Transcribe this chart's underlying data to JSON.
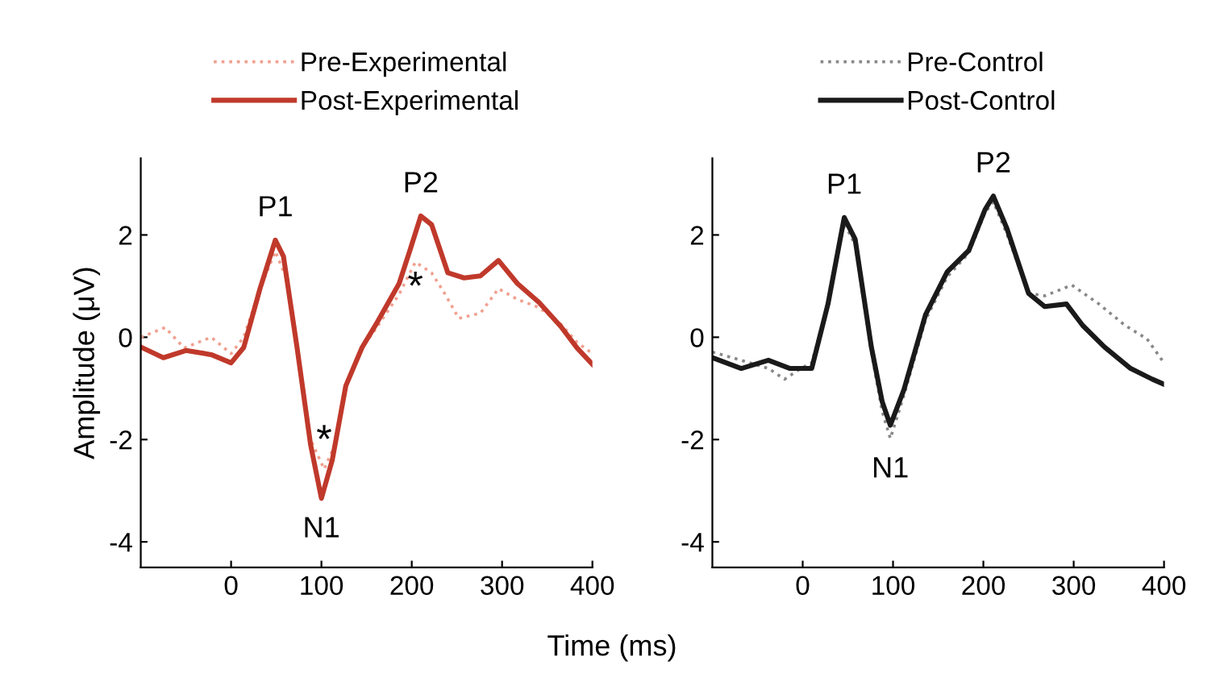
{
  "chart_data": [
    {
      "type": "line",
      "ylabel": "Amplitude (μV)",
      "xlabel": "Time (ms)",
      "xlim": [
        -100,
        400
      ],
      "ylim": [
        -4.5,
        3.5
      ],
      "xticks": [
        0,
        100,
        200,
        300,
        400
      ],
      "yticks": [
        -4,
        -2,
        0,
        2
      ],
      "grid": false,
      "legend": "top",
      "marker": "none",
      "series": [
        {
          "name": "Pre-Experimental",
          "color": "#f0a090",
          "line_style": "dotted",
          "x": [
            -100,
            -73,
            -52,
            -22,
            0,
            14,
            32,
            49,
            61,
            76,
            88,
            103,
            115,
            127,
            145,
            162,
            186,
            204,
            222,
            237,
            252,
            276,
            296,
            317,
            341,
            365,
            383,
            400
          ],
          "values": [
            0,
            0.19,
            -0.21,
            0,
            -0.32,
            0,
            0.95,
            1.68,
            1.16,
            -0.53,
            -2.0,
            -2.58,
            -2.1,
            -0.95,
            -0.21,
            0.21,
            0.84,
            1.47,
            1.26,
            0.84,
            0.37,
            0.47,
            0.95,
            0.74,
            0.58,
            0.26,
            -0.1,
            -0.32
          ]
        },
        {
          "name": "Post-Experimental",
          "color": "#c0392b",
          "line_style": "solid",
          "x": [
            -100,
            -75,
            -50,
            -22,
            0,
            14,
            32,
            49,
            58,
            73,
            88,
            100,
            112,
            127,
            145,
            162,
            186,
            198,
            210,
            222,
            240,
            258,
            276,
            296,
            317,
            341,
            365,
            383,
            400
          ],
          "values": [
            -0.19,
            -0.4,
            -0.26,
            -0.34,
            -0.5,
            -0.2,
            0.95,
            1.9,
            1.58,
            -0.2,
            -2.1,
            -3.15,
            -2.4,
            -0.95,
            -0.2,
            0.3,
            1.05,
            1.7,
            2.37,
            2.2,
            1.26,
            1.16,
            1.2,
            1.5,
            1.05,
            0.68,
            0.21,
            -0.21,
            -0.53
          ]
        }
      ],
      "annotations": [
        {
          "text": "P1",
          "x": 49,
          "y": 1.9
        },
        {
          "text": "P2",
          "x": 210,
          "y": 2.37
        },
        {
          "text": "N1",
          "x": 100,
          "y": -3.15
        },
        {
          "text": "*",
          "x": 103,
          "y": -2.58
        },
        {
          "text": "*",
          "x": 204,
          "y": 1.47
        }
      ]
    },
    {
      "type": "line",
      "xlim": [
        -100,
        400
      ],
      "ylim": [
        -4.5,
        3.5
      ],
      "xticks": [
        0,
        100,
        200,
        300,
        400
      ],
      "yticks": [
        -4,
        -2,
        0,
        2
      ],
      "grid": false,
      "legend": "top",
      "marker": "none",
      "series": [
        {
          "name": "Pre-Control",
          "color": "#888888",
          "line_style": "dotted",
          "x": [
            -100,
            -68,
            -38,
            -20,
            -2,
            10,
            28,
            46,
            58,
            76,
            88,
            97,
            112,
            136,
            160,
            184,
            202,
            211,
            226,
            250,
            268,
            298,
            328,
            357,
            381,
            400
          ],
          "values": [
            -0.29,
            -0.45,
            -0.61,
            -0.82,
            -0.61,
            -0.5,
            0.65,
            2.23,
            1.81,
            -0.29,
            -1.45,
            -1.98,
            -1.14,
            0.34,
            1.18,
            1.65,
            2.44,
            2.65,
            2.02,
            0.86,
            0.81,
            1.02,
            0.65,
            0.23,
            -0.03,
            -0.5
          ]
        },
        {
          "name": "Post-Control",
          "color": "#1a1a1a",
          "line_style": "solid",
          "x": [
            -100,
            -68,
            -38,
            -14,
            10,
            28,
            46,
            58,
            76,
            88,
            97,
            112,
            136,
            160,
            184,
            202,
            211,
            226,
            250,
            268,
            292,
            310,
            334,
            363,
            387,
            400
          ],
          "values": [
            -0.4,
            -0.61,
            -0.45,
            -0.61,
            -0.61,
            0.65,
            2.34,
            1.92,
            -0.19,
            -1.26,
            -1.72,
            -1.03,
            0.44,
            1.28,
            1.7,
            2.5,
            2.76,
            2.13,
            0.86,
            0.6,
            0.65,
            0.23,
            -0.19,
            -0.61,
            -0.82,
            -0.92
          ]
        }
      ],
      "annotations": [
        {
          "text": "P1",
          "x": 46,
          "y": 2.34
        },
        {
          "text": "P2",
          "x": 211,
          "y": 2.76
        },
        {
          "text": "N1",
          "x": 97,
          "y": -1.98
        }
      ]
    }
  ]
}
